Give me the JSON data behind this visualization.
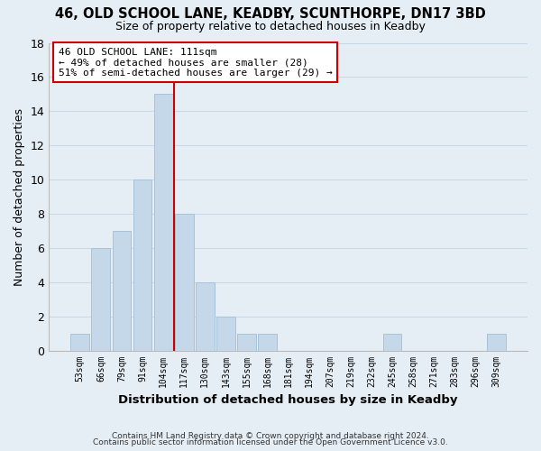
{
  "title": "46, OLD SCHOOL LANE, KEADBY, SCUNTHORPE, DN17 3BD",
  "subtitle": "Size of property relative to detached houses in Keadby",
  "xlabel": "Distribution of detached houses by size in Keadby",
  "ylabel": "Number of detached properties",
  "bin_labels": [
    "53sqm",
    "66sqm",
    "79sqm",
    "91sqm",
    "104sqm",
    "117sqm",
    "130sqm",
    "143sqm",
    "155sqm",
    "168sqm",
    "181sqm",
    "194sqm",
    "207sqm",
    "219sqm",
    "232sqm",
    "245sqm",
    "258sqm",
    "271sqm",
    "283sqm",
    "296sqm",
    "309sqm"
  ],
  "bar_heights": [
    1,
    6,
    7,
    10,
    15,
    8,
    4,
    2,
    1,
    1,
    0,
    0,
    0,
    0,
    0,
    1,
    0,
    0,
    0,
    0,
    1
  ],
  "bar_color": "#c5d8ea",
  "bar_edge_color": "#a8c4d8",
  "vline_x_index": 4.5,
  "vline_color": "#cc0000",
  "annotation_title": "46 OLD SCHOOL LANE: 111sqm",
  "annotation_line1": "← 49% of detached houses are smaller (28)",
  "annotation_line2": "51% of semi-detached houses are larger (29) →",
  "annotation_box_color": "#ffffff",
  "annotation_box_edge_color": "#cc0000",
  "ylim": [
    0,
    18
  ],
  "yticks": [
    0,
    2,
    4,
    6,
    8,
    10,
    12,
    14,
    16,
    18
  ],
  "footnote1": "Contains HM Land Registry data © Crown copyright and database right 2024.",
  "footnote2": "Contains public sector information licensed under the Open Government Licence v3.0.",
  "grid_color": "#c8d8e8",
  "background_color": "#e6eef5"
}
